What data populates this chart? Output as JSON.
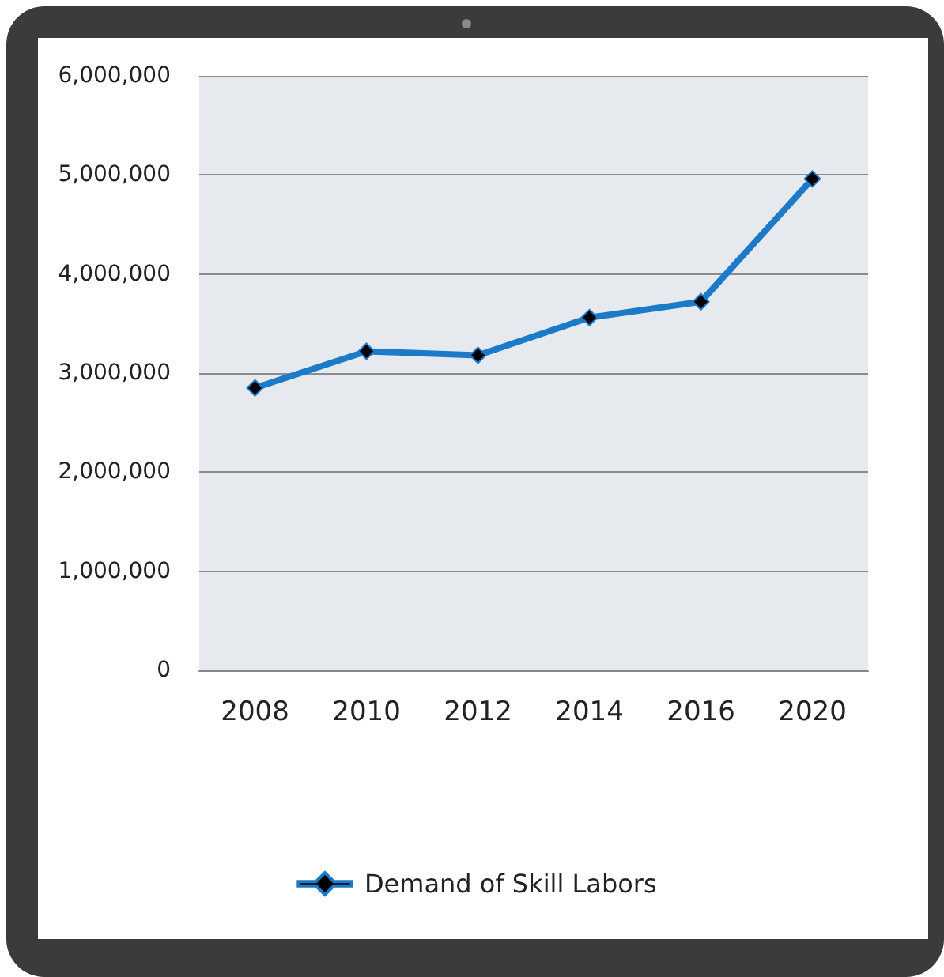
{
  "chart_data": {
    "type": "line",
    "categories": [
      "2008",
      "2010",
      "2012",
      "2014",
      "2016",
      "2020"
    ],
    "series": [
      {
        "name": "Demand of Skill Labors",
        "color": "#1b7bc9",
        "values": [
          2850000,
          3220000,
          3180000,
          3560000,
          3720000,
          4960000
        ]
      }
    ],
    "ylim": [
      0,
      6000000
    ],
    "yticks": [
      {
        "value": 0,
        "label": "0"
      },
      {
        "value": 1000000,
        "label": "1,000,000"
      },
      {
        "value": 2000000,
        "label": "2,000,000"
      },
      {
        "value": 3000000,
        "label": "3,000,000"
      },
      {
        "value": 4000000,
        "label": "4,000,000"
      },
      {
        "value": 5000000,
        "label": "5,000,000"
      },
      {
        "value": 6000000,
        "label": "6,000,000"
      }
    ],
    "grid": "y",
    "legend": "bottom",
    "marker": "diamond",
    "line_style": "solid"
  }
}
